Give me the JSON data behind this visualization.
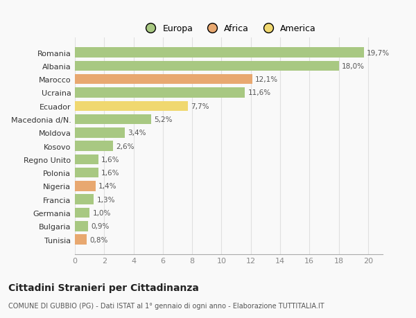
{
  "categories": [
    "Romania",
    "Albania",
    "Marocco",
    "Ucraina",
    "Ecuador",
    "Macedonia d/N.",
    "Moldova",
    "Kosovo",
    "Regno Unito",
    "Polonia",
    "Nigeria",
    "Francia",
    "Germania",
    "Bulgaria",
    "Tunisia"
  ],
  "values": [
    19.7,
    18.0,
    12.1,
    11.6,
    7.7,
    5.2,
    3.4,
    2.6,
    1.6,
    1.6,
    1.4,
    1.3,
    1.0,
    0.9,
    0.8
  ],
  "labels": [
    "19,7%",
    "18,0%",
    "12,1%",
    "11,6%",
    "7,7%",
    "5,2%",
    "3,4%",
    "2,6%",
    "1,6%",
    "1,6%",
    "1,4%",
    "1,3%",
    "1,0%",
    "0,9%",
    "0,8%"
  ],
  "continents": [
    "Europa",
    "Europa",
    "Africa",
    "Europa",
    "America",
    "Europa",
    "Europa",
    "Europa",
    "Europa",
    "Europa",
    "Africa",
    "Europa",
    "Europa",
    "Europa",
    "Africa"
  ],
  "colors": {
    "Europa": "#a8c882",
    "Africa": "#e8a870",
    "America": "#f0d870"
  },
  "xlim": [
    0,
    21
  ],
  "xticks": [
    0,
    2,
    4,
    6,
    8,
    10,
    12,
    14,
    16,
    18,
    20
  ],
  "title": "Cittadini Stranieri per Cittadinanza",
  "subtitle": "COMUNE DI GUBBIO (PG) - Dati ISTAT al 1° gennaio di ogni anno - Elaborazione TUTTITALIA.IT",
  "background_color": "#f9f9f9",
  "grid_color": "#e0e0e0",
  "label_color": "#555555",
  "axis_color": "#aaaaaa"
}
